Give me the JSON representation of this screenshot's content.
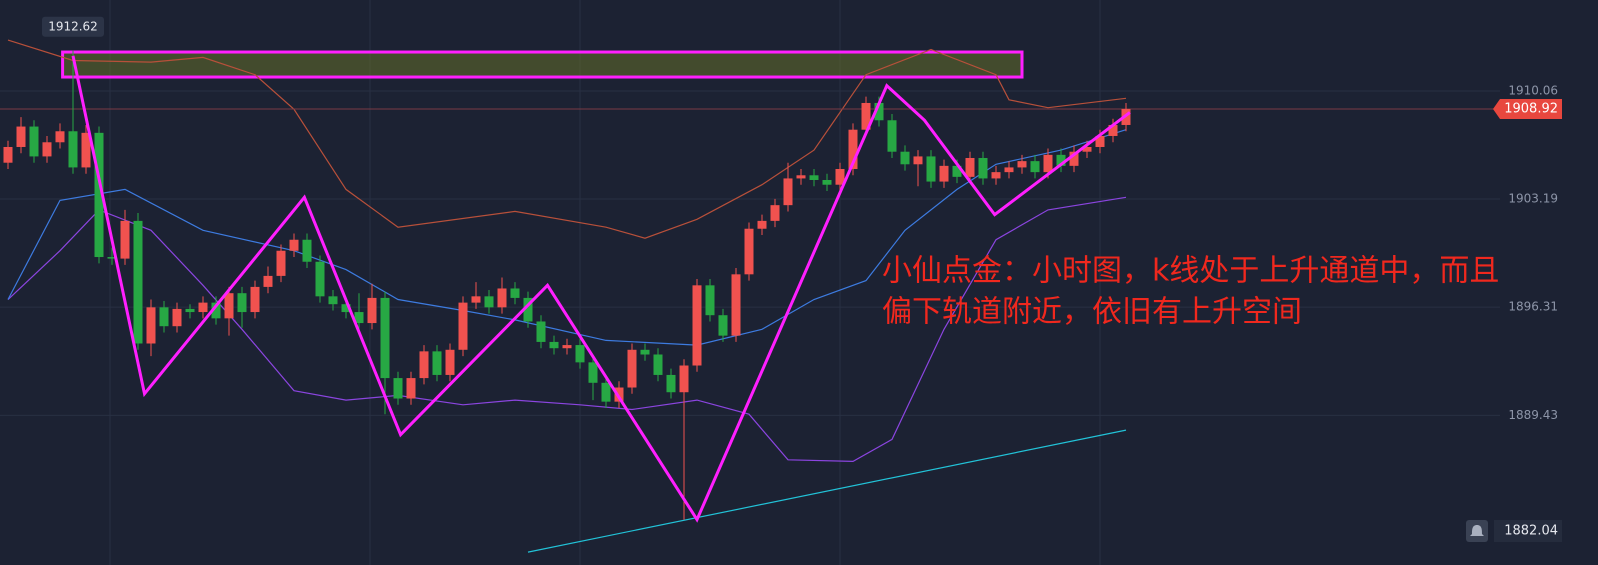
{
  "chart_data": {
    "type": "candlestick",
    "annotation": [
      "小仙点金：小时图，k线处于上升通道中，而且",
      "偏下轨道附近，依旧有上升空间"
    ],
    "up_color": "#f0524f",
    "down_color": "#27a844",
    "ylim": [
      1879.91,
      1915.85
    ],
    "yticks": [
      1910.06,
      1903.19,
      1896.31,
      1889.43
    ],
    "last_price": 1908.92,
    "high_marker": 1912.62,
    "alert_price": 1882.04,
    "candles": {
      "open": [
        1905.5,
        1906.5,
        1907.8,
        1905.9,
        1906.8,
        1907.5,
        1905.2,
        1907.4,
        1899.5,
        1899.4,
        1901.8,
        1894.0,
        1896.3,
        1895.1,
        1896.2,
        1896.0,
        1896.6,
        1895.6,
        1897.2,
        1896.0,
        1897.6,
        1898.3,
        1899.9,
        1900.6,
        1899.2,
        1897.0,
        1896.5,
        1896.0,
        1895.3,
        1896.9,
        1891.8,
        1890.5,
        1891.8,
        1893.5,
        1892.0,
        1893.6,
        1896.6,
        1897.0,
        1896.3,
        1897.5,
        1896.9,
        1895.4,
        1894.1,
        1893.7,
        1893.9,
        1892.8,
        1891.5,
        1890.3,
        1891.2,
        1893.6,
        1893.3,
        1892.0,
        1890.9,
        1892.6,
        1897.7,
        1895.8,
        1894.5,
        1898.4,
        1901.3,
        1901.8,
        1902.8,
        1904.5,
        1904.7,
        1904.4,
        1904.1,
        1905.1,
        1907.6,
        1909.3,
        1908.2,
        1906.2,
        1905.4,
        1905.9,
        1904.3,
        1905.3,
        1904.6,
        1905.8,
        1904.5,
        1904.9,
        1905.2,
        1905.6,
        1904.9,
        1906.0,
        1905.3,
        1906.2,
        1906.5,
        1907.2,
        1907.9
      ],
      "high": [
        1906.9,
        1908.4,
        1908.2,
        1907.2,
        1908.0,
        1912.62,
        1907.9,
        1907.8,
        1900.1,
        1902.5,
        1902.3,
        1896.8,
        1896.7,
        1896.6,
        1896.5,
        1897.0,
        1897.0,
        1897.6,
        1897.6,
        1898.0,
        1898.9,
        1900.3,
        1901.0,
        1901.0,
        1899.6,
        1897.4,
        1896.9,
        1897.2,
        1897.8,
        1897.3,
        1892.2,
        1892.2,
        1893.9,
        1893.9,
        1894.0,
        1897.0,
        1897.9,
        1897.4,
        1898.2,
        1897.9,
        1897.3,
        1895.8,
        1894.5,
        1894.3,
        1894.3,
        1893.2,
        1891.9,
        1891.6,
        1894.0,
        1894.0,
        1893.7,
        1892.4,
        1893.0,
        1898.1,
        1898.1,
        1896.2,
        1898.8,
        1901.7,
        1902.2,
        1903.2,
        1905.5,
        1905.1,
        1905.1,
        1904.8,
        1905.5,
        1908.0,
        1909.7,
        1909.7,
        1908.6,
        1906.6,
        1906.3,
        1906.3,
        1905.7,
        1905.7,
        1906.2,
        1906.2,
        1905.3,
        1905.6,
        1906.0,
        1906.0,
        1906.4,
        1906.4,
        1906.6,
        1906.9,
        1907.6,
        1908.3,
        1909.3
      ],
      "low": [
        1905.1,
        1906.1,
        1905.5,
        1905.5,
        1906.4,
        1904.8,
        1904.8,
        1899.1,
        1899.0,
        1899.0,
        1893.6,
        1893.2,
        1894.7,
        1894.7,
        1895.6,
        1895.6,
        1895.2,
        1894.5,
        1895.0,
        1895.6,
        1897.2,
        1897.9,
        1899.5,
        1898.8,
        1896.6,
        1896.1,
        1895.6,
        1894.9,
        1894.9,
        1889.5,
        1890.1,
        1890.1,
        1891.4,
        1891.6,
        1891.6,
        1893.2,
        1896.2,
        1895.9,
        1895.9,
        1896.5,
        1895.0,
        1893.7,
        1893.3,
        1893.3,
        1892.4,
        1890.4,
        1889.9,
        1889.9,
        1890.8,
        1892.9,
        1891.6,
        1890.5,
        1882.8,
        1892.2,
        1895.4,
        1894.1,
        1894.1,
        1898.0,
        1900.9,
        1901.4,
        1902.4,
        1904.1,
        1904.0,
        1903.7,
        1903.7,
        1904.7,
        1907.2,
        1907.8,
        1905.8,
        1905.0,
        1904.0,
        1903.9,
        1903.9,
        1904.2,
        1904.2,
        1904.1,
        1904.1,
        1904.5,
        1904.8,
        1904.5,
        1904.5,
        1904.9,
        1904.9,
        1905.8,
        1906.1,
        1906.8,
        1907.5
      ],
      "close": [
        1906.5,
        1907.8,
        1905.9,
        1906.8,
        1907.5,
        1905.2,
        1907.4,
        1899.5,
        1899.4,
        1901.8,
        1894.0,
        1896.3,
        1895.1,
        1896.2,
        1896.0,
        1896.6,
        1895.6,
        1897.2,
        1896.0,
        1897.6,
        1898.3,
        1899.9,
        1900.6,
        1899.2,
        1897.0,
        1896.5,
        1896.0,
        1895.3,
        1896.9,
        1891.8,
        1890.5,
        1891.8,
        1893.5,
        1892.0,
        1893.6,
        1896.6,
        1897.0,
        1896.3,
        1897.5,
        1896.9,
        1895.4,
        1894.1,
        1893.7,
        1893.9,
        1892.8,
        1891.5,
        1890.3,
        1891.2,
        1893.6,
        1893.3,
        1892.0,
        1890.9,
        1892.6,
        1897.7,
        1895.8,
        1894.5,
        1898.4,
        1901.3,
        1901.8,
        1902.8,
        1904.5,
        1904.7,
        1904.4,
        1904.1,
        1905.1,
        1907.6,
        1909.3,
        1908.2,
        1906.2,
        1905.4,
        1905.9,
        1904.3,
        1905.3,
        1904.6,
        1905.8,
        1904.5,
        1904.9,
        1905.2,
        1905.6,
        1904.9,
        1906.0,
        1905.3,
        1906.2,
        1906.5,
        1907.2,
        1907.9,
        1908.92
      ]
    },
    "overlays": [
      {
        "color": "#b8503a",
        "x": [
          0,
          5,
          11,
          15,
          19,
          22,
          26,
          30,
          39,
          46,
          49,
          53,
          58,
          62,
          66,
          71,
          76,
          77,
          80,
          86
        ],
        "values": [
          1913.3,
          1912.0,
          1911.9,
          1912.2,
          1911.1,
          1908.9,
          1903.8,
          1901.4,
          1902.4,
          1901.4,
          1900.7,
          1901.9,
          1904.1,
          1906.3,
          1911.1,
          1912.7,
          1911.1,
          1909.5,
          1909.0,
          1909.6
        ]
      },
      {
        "color": "#8b45e0",
        "x": [
          0,
          4,
          7,
          11,
          15,
          18,
          22,
          26,
          30,
          35,
          39,
          44,
          48,
          53,
          57,
          60,
          65,
          68,
          72,
          76,
          80,
          86
        ],
        "values": [
          1896.8,
          1899.9,
          1902.5,
          1901.2,
          1897.7,
          1894.9,
          1891.0,
          1890.4,
          1890.7,
          1890.1,
          1890.4,
          1890.1,
          1889.8,
          1890.4,
          1889.5,
          1886.6,
          1886.5,
          1887.9,
          1894.9,
          1900.6,
          1902.5,
          1903.3
        ]
      },
      {
        "color": "#3d7be0",
        "x": [
          0,
          4,
          9,
          15,
          22,
          26,
          30,
          35,
          39,
          46,
          53,
          58,
          62,
          66,
          69,
          73,
          76,
          81,
          86
        ],
        "values": [
          1896.8,
          1903.1,
          1903.8,
          1901.2,
          1899.9,
          1898.7,
          1896.8,
          1896.1,
          1895.5,
          1894.2,
          1893.9,
          1894.9,
          1896.8,
          1898.0,
          1901.2,
          1903.8,
          1905.4,
          1906.3,
          1907.6
        ]
      },
      {
        "color": "#22c3d8",
        "x": [
          40,
          86
        ],
        "values": [
          1880.73,
          1888.49
        ]
      }
    ],
    "zigzag": {
      "color": "#ff1fff",
      "x": [
        5,
        10.5,
        22.8,
        30.2,
        41.5,
        53,
        67.6,
        70.5,
        75.9,
        86.3
      ],
      "values": [
        1912.3,
        1890.8,
        1903.3,
        1888.2,
        1897.7,
        1882.8,
        1910.4,
        1908.2,
        1902.2,
        1908.7
      ]
    },
    "zone": {
      "x": [
        4.2,
        78
      ],
      "y": [
        1910.95,
        1912.54
      ]
    }
  }
}
